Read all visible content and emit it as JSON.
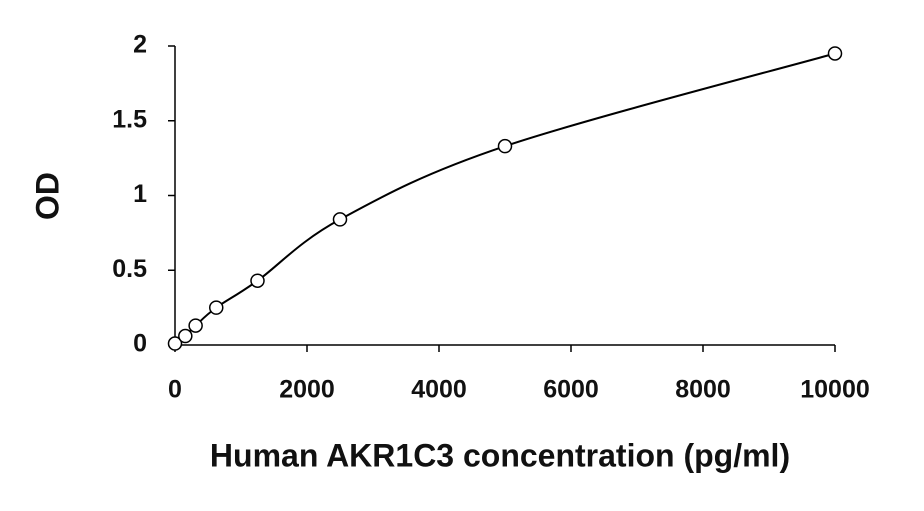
{
  "chart_data": {
    "type": "scatter",
    "x_label": "Human AKR1C3 concentration (pg/ml)",
    "y_label": "OD",
    "x": [
      0,
      156.25,
      312.5,
      625,
      1250,
      2500,
      5000,
      10000
    ],
    "values": [
      0.01,
      0.06,
      0.13,
      0.25,
      0.43,
      0.84,
      1.33,
      1.95
    ],
    "color": "#000000",
    "xlim": [
      0,
      10000
    ],
    "xticks": [
      0,
      2000,
      4000,
      6000,
      8000,
      10000
    ],
    "ylim": [
      0,
      2
    ],
    "yticks": [
      0,
      0.5,
      1,
      1.5,
      2
    ],
    "grid": false
  }
}
